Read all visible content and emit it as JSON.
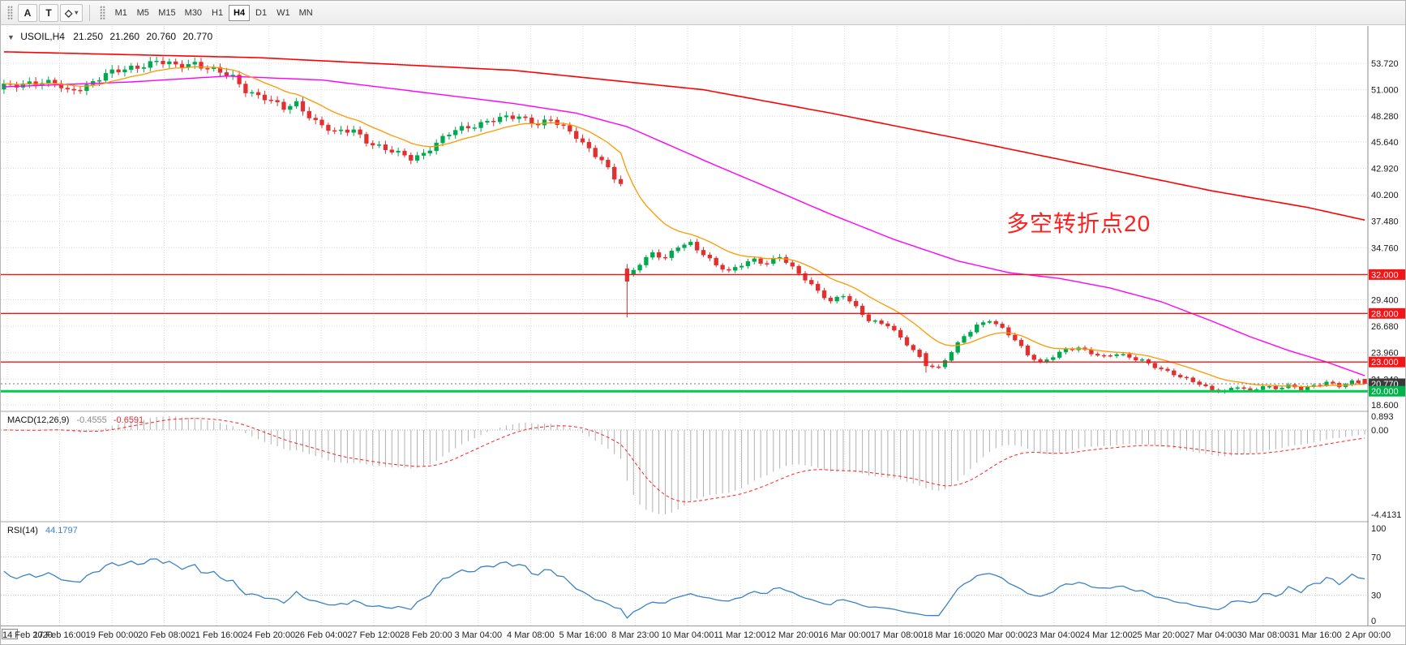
{
  "toolbar": {
    "tools": [
      {
        "id": "arrow-label",
        "glyph": "A"
      },
      {
        "id": "text",
        "glyph": "T"
      },
      {
        "id": "shapes",
        "glyph": "◇"
      }
    ],
    "dropdown_caret": "▾",
    "timeframes": [
      "M1",
      "M5",
      "M15",
      "M30",
      "H1",
      "H4",
      "D1",
      "W1",
      "MN"
    ],
    "active_timeframe": "H4"
  },
  "symbol_header": {
    "menu_arrow": "▼",
    "symbol": "USOIL,H4",
    "open": "21.250",
    "high": "21.260",
    "low": "20.760",
    "close": "20.770"
  },
  "annotation": {
    "text": "多空转折点20",
    "color": "#ff1f1f"
  },
  "price_axis": {
    "labels": [
      "53.720",
      "51.000",
      "48.280",
      "45.640",
      "42.920",
      "40.200",
      "37.480",
      "34.760",
      "32.040",
      "29.400",
      "26.680",
      "23.960",
      "21.240",
      "18.600"
    ]
  },
  "price_badges": [
    {
      "text": "32.000",
      "price": 32.0,
      "bg": "#f21616",
      "fg": "#ffffff"
    },
    {
      "text": "28.000",
      "price": 28.0,
      "bg": "#f21616",
      "fg": "#ffffff"
    },
    {
      "text": "23.000",
      "price": 23.0,
      "bg": "#f21616",
      "fg": "#ffffff"
    },
    {
      "text": "20.770",
      "price": 20.77,
      "bg": "#3a3a3a",
      "fg": "#ffffff"
    },
    {
      "text": "20.000",
      "price": 20.0,
      "bg": "#00b44c",
      "fg": "#ffffff"
    }
  ],
  "macd_panel": {
    "label": "MACD(12,26,9)",
    "value_main": "-0.4555",
    "value_signal": "-0.6591",
    "axis_labels": [
      "0.893",
      "0.00",
      "-4.4131"
    ]
  },
  "rsi_panel": {
    "label": "RSI(14)",
    "value": "44.1797",
    "axis_labels": [
      "100",
      "70",
      "30",
      "0"
    ],
    "levels": [
      70,
      30
    ]
  },
  "time_axis": {
    "labels": [
      "14 Feb 2020",
      "17 Feb 16:00",
      "19 Feb 00:00",
      "20 Feb 08:00",
      "21 Feb 16:00",
      "24 Feb 20:00",
      "26 Feb 04:00",
      "27 Feb 12:00",
      "28 Feb 20:00",
      "3 Mar 04:00",
      "4 Mar 08:00",
      "5 Mar 16:00",
      "8 Mar 23:00",
      "10 Mar 04:00",
      "11 Mar 12:00",
      "12 Mar 20:00",
      "16 Mar 00:00",
      "17 Mar 08:00",
      "18 Mar 16:00",
      "20 Mar 00:00",
      "23 Mar 04:00",
      "24 Mar 12:00",
      "25 Mar 20:00",
      "27 Mar 04:00",
      "30 Mar 08:00",
      "31 Mar 16:00",
      "2 Apr 00:00"
    ]
  },
  "chart_data": {
    "type": "candlestick",
    "symbol": "USOIL",
    "timeframe": "H4",
    "bars": 215,
    "visible_price_range": [
      18.0,
      57.0
    ],
    "last_price": 20.77,
    "last_ohlc": {
      "open": 21.25,
      "high": 21.26,
      "low": 20.76,
      "close": 20.77
    },
    "price_path_anchors": [
      [
        0,
        51.3
      ],
      [
        4,
        51.8
      ],
      [
        8,
        51.6
      ],
      [
        10,
        50.8
      ],
      [
        13,
        51.5
      ],
      [
        16,
        52.5
      ],
      [
        20,
        53.3
      ],
      [
        24,
        53.9
      ],
      [
        27,
        53.4
      ],
      [
        30,
        53.8
      ],
      [
        33,
        53.0
      ],
      [
        36,
        52.2
      ],
      [
        38,
        51.0
      ],
      [
        41,
        50.2
      ],
      [
        44,
        49.0
      ],
      [
        46,
        49.6
      ],
      [
        49,
        47.8
      ],
      [
        52,
        46.5
      ],
      [
        55,
        46.9
      ],
      [
        57,
        45.8
      ],
      [
        60,
        44.8
      ],
      [
        64,
        44.0
      ],
      [
        66,
        44.5
      ],
      [
        68,
        45.5
      ],
      [
        71,
        46.8
      ],
      [
        73,
        47.2
      ],
      [
        76,
        47.8
      ],
      [
        81,
        48.2
      ],
      [
        84,
        47.6
      ],
      [
        86,
        47.9
      ],
      [
        88,
        47.0
      ],
      [
        90,
        46.2
      ],
      [
        92,
        45.0
      ],
      [
        94,
        43.8
      ],
      [
        96,
        41.8
      ],
      [
        97,
        41.3
      ],
      [
        98,
        31.8
      ],
      [
        100,
        33.2
      ],
      [
        102,
        34.3
      ],
      [
        104,
        33.6
      ],
      [
        106,
        34.8
      ],
      [
        108,
        35.2
      ],
      [
        110,
        34.2
      ],
      [
        112,
        33.0
      ],
      [
        114,
        32.2
      ],
      [
        116,
        33.0
      ],
      [
        118,
        33.6
      ],
      [
        120,
        33.2
      ],
      [
        122,
        33.8
      ],
      [
        124,
        32.6
      ],
      [
        126,
        31.6
      ],
      [
        128,
        30.4
      ],
      [
        130,
        29.2
      ],
      [
        132,
        29.8
      ],
      [
        134,
        28.6
      ],
      [
        136,
        27.4
      ],
      [
        139,
        26.8
      ],
      [
        141,
        25.4
      ],
      [
        143,
        24.2
      ],
      [
        145,
        22.8
      ],
      [
        147,
        22.4
      ],
      [
        149,
        24.0
      ],
      [
        151,
        25.6
      ],
      [
        153,
        26.8
      ],
      [
        155,
        27.4
      ],
      [
        157,
        26.4
      ],
      [
        159,
        25.2
      ],
      [
        161,
        23.8
      ],
      [
        163,
        23.0
      ],
      [
        165,
        23.6
      ],
      [
        167,
        24.2
      ],
      [
        169,
        24.4
      ],
      [
        171,
        24.0
      ],
      [
        173,
        23.6
      ],
      [
        175,
        23.8
      ],
      [
        177,
        23.4
      ],
      [
        179,
        23.2
      ],
      [
        181,
        22.6
      ],
      [
        183,
        22.0
      ],
      [
        185,
        21.4
      ],
      [
        188,
        20.8
      ],
      [
        190,
        20.2
      ],
      [
        192,
        20.0
      ],
      [
        194,
        20.4
      ],
      [
        196,
        20.0
      ],
      [
        198,
        20.6
      ],
      [
        200,
        20.3
      ],
      [
        202,
        20.5
      ],
      [
        204,
        20.2
      ],
      [
        206,
        20.6
      ],
      [
        208,
        21.0
      ],
      [
        210,
        20.5
      ],
      [
        212,
        20.9
      ],
      [
        214,
        20.77
      ]
    ],
    "special_bars": [
      {
        "i": 98,
        "open": 32.6,
        "high": 33.1,
        "low": 27.6,
        "close": 31.3
      },
      {
        "i": 145,
        "open": 23.9,
        "high": 24.1,
        "low": 21.9,
        "close": 22.6
      },
      {
        "i": 214,
        "open": 21.25,
        "high": 21.26,
        "low": 20.76,
        "close": 20.77
      }
    ],
    "ma_fast": {
      "type": "EMA",
      "period": 13
    },
    "ma_mid_anchors": [
      [
        0,
        51.3
      ],
      [
        20,
        51.8
      ],
      [
        35,
        52.4
      ],
      [
        50,
        52.0
      ],
      [
        65,
        50.8
      ],
      [
        80,
        49.6
      ],
      [
        90,
        48.6
      ],
      [
        98,
        47.2
      ],
      [
        105,
        45.2
      ],
      [
        112,
        43.2
      ],
      [
        120,
        41.0
      ],
      [
        130,
        38.2
      ],
      [
        140,
        35.6
      ],
      [
        150,
        33.4
      ],
      [
        158,
        32.2
      ],
      [
        166,
        31.6
      ],
      [
        174,
        30.6
      ],
      [
        182,
        29.2
      ],
      [
        190,
        27.2
      ],
      [
        196,
        25.6
      ],
      [
        202,
        24.2
      ],
      [
        208,
        23.0
      ],
      [
        214,
        21.6
      ]
    ],
    "ma_slow_anchors": [
      [
        0,
        54.9
      ],
      [
        40,
        54.3
      ],
      [
        80,
        53.0
      ],
      [
        110,
        51.0
      ],
      [
        130,
        48.6
      ],
      [
        150,
        46.0
      ],
      [
        170,
        43.3
      ],
      [
        190,
        40.6
      ],
      [
        205,
        38.9
      ],
      [
        214,
        37.6
      ]
    ],
    "horizontal_levels": [
      {
        "price": 32.0,
        "color": "#f21616",
        "width": 1.4
      },
      {
        "price": 28.0,
        "color": "#f21616",
        "width": 1.4
      },
      {
        "price": 23.0,
        "color": "#f21616",
        "width": 1.4
      },
      {
        "price": 20.0,
        "color": "#00cc4e",
        "width": 3
      }
    ],
    "macd": {
      "params": [
        12,
        26,
        9
      ],
      "scale_max": 0.893,
      "scale_min": -4.4131
    },
    "rsi": {
      "period": 14,
      "scale": [
        0,
        100
      ]
    },
    "colors": {
      "up": "#00a94f",
      "down": "#e23030",
      "ma_fast": "#ff9800",
      "ma_mid": "#ff00ff",
      "ma_slow": "#ff0000",
      "macd_hist": "#b0b0b0",
      "macd_signal": "#ff2222",
      "rsi": "#3b82c4",
      "grid": "#d9d9d9"
    }
  }
}
